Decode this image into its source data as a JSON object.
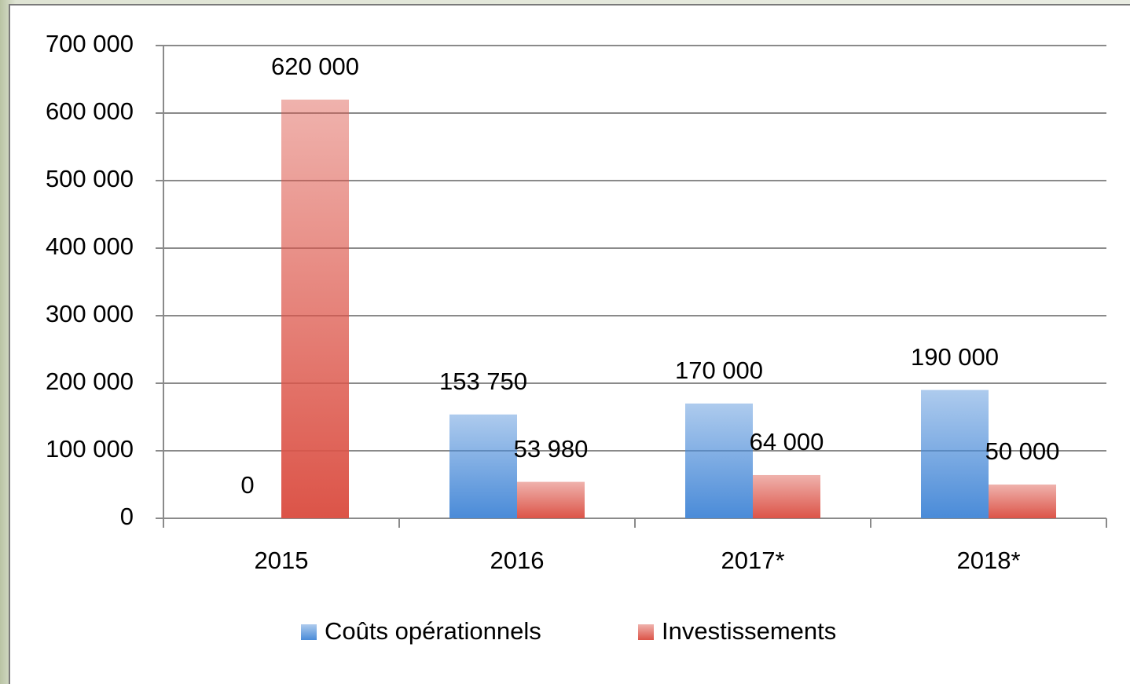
{
  "chart_data": {
    "type": "bar",
    "categories": [
      "2015",
      "2016",
      "2017*",
      "2018*"
    ],
    "series": [
      {
        "name": "Coûts opérationnels",
        "color": "#4a8bd8",
        "values": [
          0,
          153750,
          170000,
          190000
        ],
        "value_labels": [
          "0",
          "153 750",
          "170 000",
          "190 000"
        ]
      },
      {
        "name": "Investissements",
        "color": "#dc5448",
        "values": [
          620000,
          53980,
          64000,
          50000
        ],
        "value_labels": [
          "620 000",
          "53 980",
          "64 000",
          "50 000"
        ]
      }
    ],
    "ylim": [
      0,
      700000
    ],
    "yticks": [
      0,
      {
        "value": 100000,
        "label": "100 000"
      },
      {
        "value": 200000,
        "label": "200 000"
      },
      {
        "value": 300000,
        "label": "300 000"
      },
      {
        "value": 400000,
        "label": "400 000"
      },
      {
        "value": 500000,
        "label": "500 000"
      },
      {
        "value": 600000,
        "label": "600 000"
      },
      {
        "value": 700000,
        "label": "700 000"
      }
    ],
    "grid": true,
    "legend": "bottom"
  }
}
